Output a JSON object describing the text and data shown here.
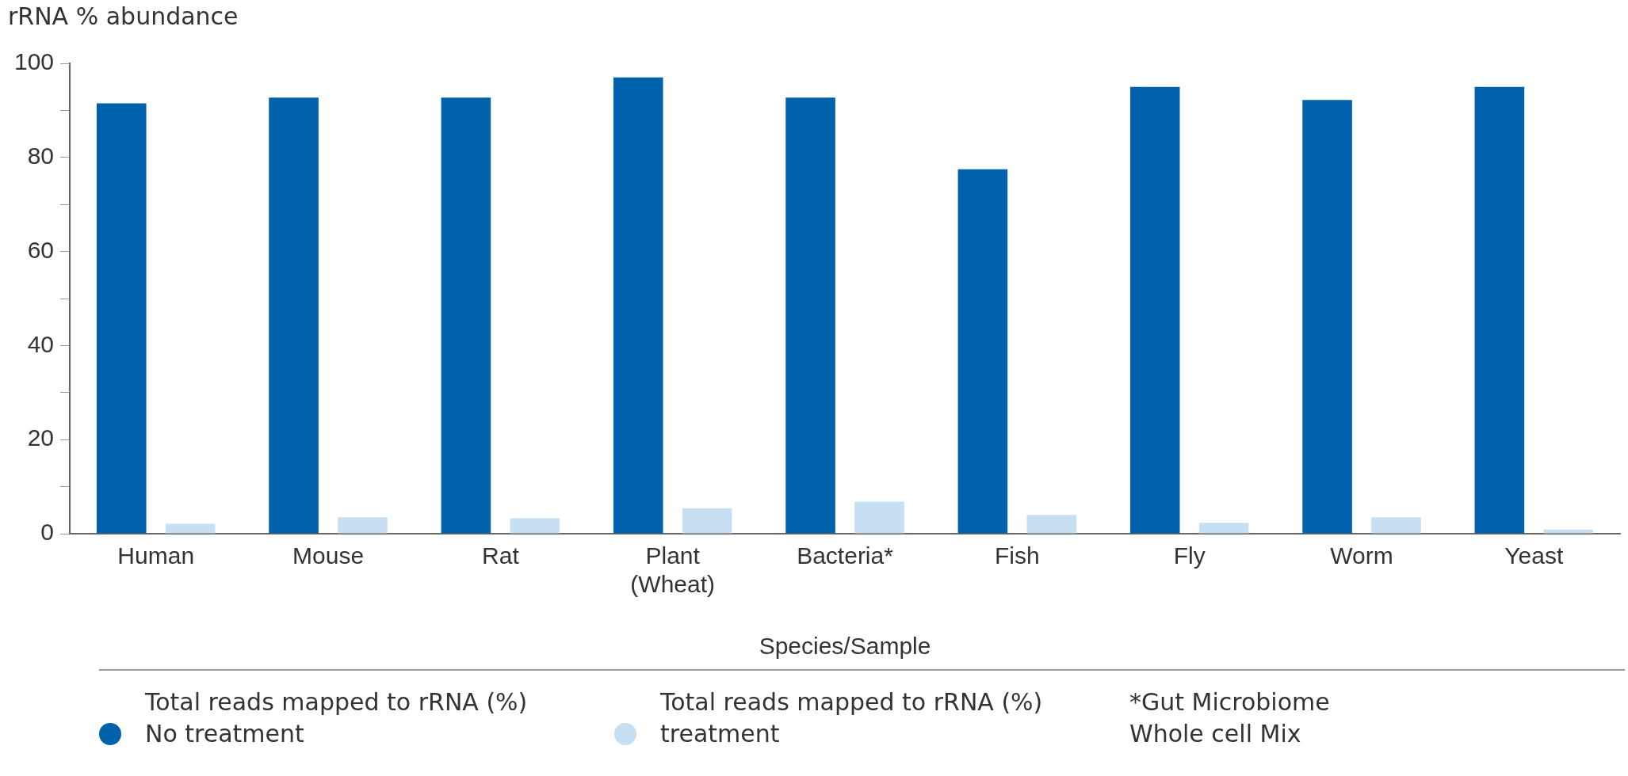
{
  "chart_data": {
    "type": "bar",
    "ylabel": "rRNA % abundance",
    "xlabel": "Species/Sample",
    "categories": [
      "Human",
      "Mouse",
      "Rat",
      "Plant (Wheat)",
      "Bacteria*",
      "Fish",
      "Fly",
      "Worm",
      "Yeast"
    ],
    "series": [
      {
        "name": "Total reads mapped to rRNA (%) No treatment",
        "color": "#0062ad",
        "values": [
          91.5,
          92.7,
          92.7,
          97,
          92.7,
          77.5,
          95,
          92.2,
          95
        ]
      },
      {
        "name": "Total reads mapped to rRNA (%) treatment",
        "color": "#c6dff3",
        "values": [
          2.1,
          3.5,
          3.3,
          5.4,
          6.8,
          4,
          2.3,
          3.5,
          0.9
        ]
      }
    ],
    "ylim": [
      0,
      100
    ],
    "yticks": [
      0,
      {
        "value": 10,
        "label": null
      },
      20,
      {
        "value": 30,
        "label": null
      },
      40,
      {
        "value": 50,
        "label": null
      },
      60,
      {
        "value": 70,
        "label": null
      },
      80,
      {
        "value": 90,
        "label": null
      },
      100
    ],
    "grid": false,
    "legend": "bottom",
    "annotations": [
      "*Gut Microbiome Whole cell Mix"
    ]
  }
}
